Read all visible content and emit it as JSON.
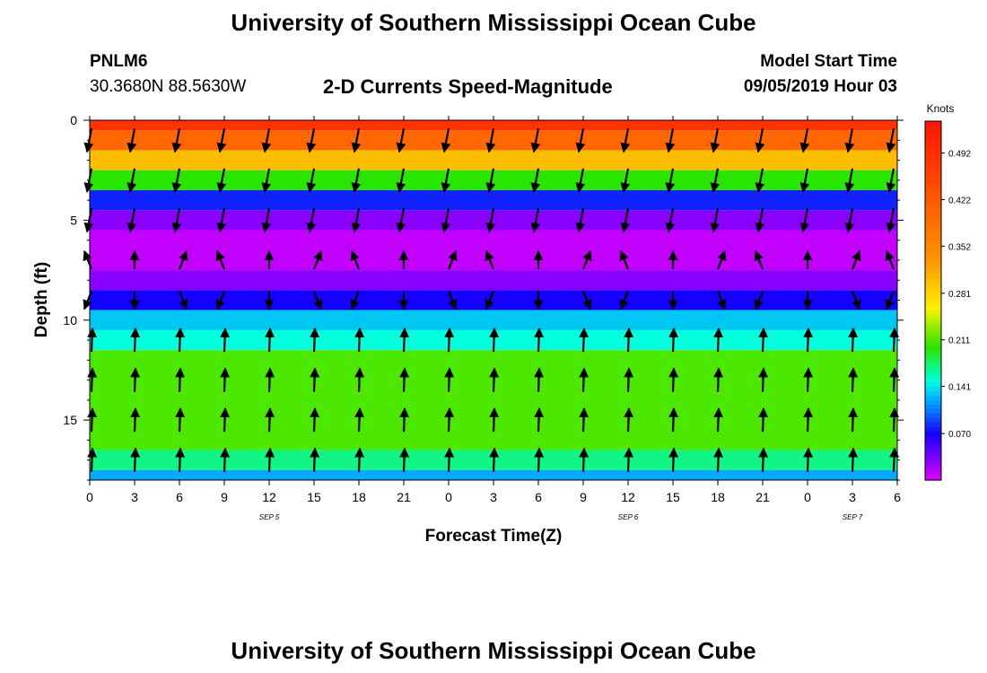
{
  "header": {
    "title": "University of Southern Mississippi Ocean Cube",
    "station": "PNLM6",
    "coordinates": "30.3680N 88.5630W",
    "subtitle": "2-D Currents Speed-Magnitude",
    "model_start_label": "Model Start Time",
    "model_start_value": "09/05/2019 Hour 03"
  },
  "footer": {
    "title": "University of Southern Mississippi Ocean Cube"
  },
  "chart_data": {
    "type": "heatmap",
    "xlabel": "Forecast Time(Z)",
    "ylabel": "Depth (ft)",
    "x_tick_labels": [
      "0",
      "3",
      "6",
      "9",
      "12",
      "15",
      "18",
      "21",
      "0",
      "3",
      "6",
      "9",
      "12",
      "15",
      "18",
      "21",
      "0",
      "3",
      "6"
    ],
    "x_day_labels": [
      {
        "label": "SEP 5",
        "at_tick": 4
      },
      {
        "label": "SEP 6",
        "at_tick": 12
      },
      {
        "label": "SEP 7",
        "at_tick": 17
      }
    ],
    "xlim_hours": [
      0,
      54
    ],
    "y_ticks": [
      0,
      5,
      10,
      15
    ],
    "ylim_ft": [
      0,
      18
    ],
    "colorbar": {
      "title": "Knots",
      "range": [
        0,
        0.54
      ],
      "tick_labels": [
        "0.492",
        "0.422",
        "0.352",
        "0.281",
        "0.211",
        "0.141",
        "0.070"
      ],
      "tick_values": [
        0.492,
        0.422,
        0.352,
        0.281,
        0.211,
        0.141,
        0.07
      ]
    },
    "speed_profile_hours": [
      0,
      1,
      2,
      3,
      4,
      5,
      6,
      7,
      8,
      9,
      10,
      11,
      12,
      13,
      14,
      15,
      16,
      17,
      18,
      19,
      20,
      21,
      22,
      23,
      24,
      25,
      26,
      27,
      28,
      29,
      30,
      31,
      32,
      33,
      34,
      35,
      36,
      37,
      38,
      39,
      40,
      41,
      42,
      43,
      44,
      45,
      46,
      47,
      48,
      49,
      50,
      51,
      52,
      53,
      54
    ],
    "speed_layers_ft": [
      {
        "depth": [
          0.0,
          0.5
        ],
        "speed_knots": 0.49
      },
      {
        "depth": [
          0.5,
          1.5
        ],
        "speed_knots": 0.4
      },
      {
        "depth": [
          1.5,
          2.5
        ],
        "speed_knots": 0.3
      },
      {
        "depth": [
          2.5,
          3.5
        ],
        "speed_knots": 0.2
      },
      {
        "depth": [
          3.5,
          4.5
        ],
        "speed_knots": 0.08
      },
      {
        "depth": [
          4.5,
          5.5
        ],
        "speed_knots": 0.03
      },
      {
        "depth": [
          5.5,
          7.5
        ],
        "speed_knots": 0.01
      },
      {
        "depth": [
          7.5,
          8.5
        ],
        "speed_knots": 0.03
      },
      {
        "depth": [
          8.5,
          9.5
        ],
        "speed_knots": 0.07
      },
      {
        "depth": [
          9.5,
          10.5
        ],
        "speed_knots": 0.13
      },
      {
        "depth": [
          10.5,
          11.5
        ],
        "speed_knots": 0.15
      },
      {
        "depth": [
          11.5,
          16.5
        ],
        "speed_knots": 0.21
      },
      {
        "depth": [
          16.5,
          17.5
        ],
        "speed_knots": 0.17
      },
      {
        "depth": [
          17.5,
          18.0
        ],
        "speed_knots": 0.12
      }
    ],
    "vector_hours": [
      0,
      3,
      6,
      9,
      12,
      15,
      18,
      21,
      24,
      27,
      30,
      33,
      36,
      39,
      42,
      45,
      48,
      51,
      54
    ],
    "vector_depths_ft": [
      1,
      3,
      5,
      7,
      9,
      11,
      13,
      15,
      17
    ],
    "vector_rows": [
      {
        "depth": 1,
        "direction": "down"
      },
      {
        "depth": 3,
        "direction": "down"
      },
      {
        "depth": 5,
        "direction": "down"
      },
      {
        "depth": 7,
        "direction": "mixed"
      },
      {
        "depth": 9,
        "direction": "mixed"
      },
      {
        "depth": 11,
        "direction": "up"
      },
      {
        "depth": 13,
        "direction": "up"
      },
      {
        "depth": 15,
        "direction": "up"
      },
      {
        "depth": 17,
        "direction": "up"
      }
    ]
  }
}
